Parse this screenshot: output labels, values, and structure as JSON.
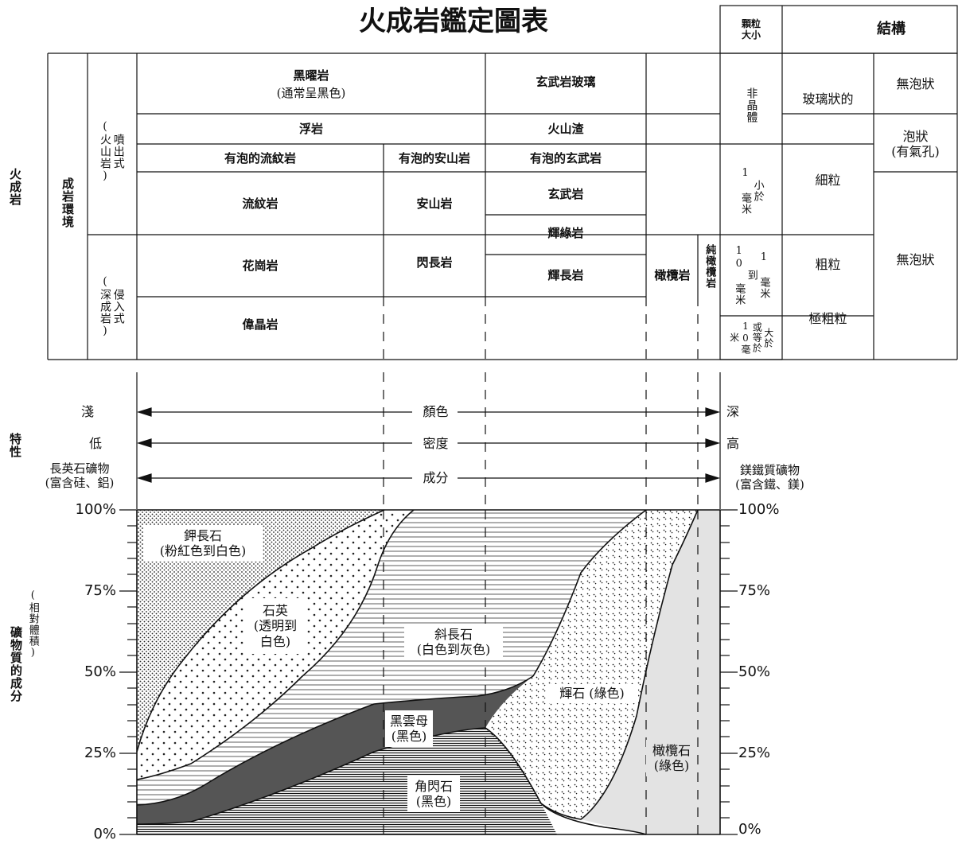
{
  "title": "火成岩鑑定圖表",
  "header": {
    "grain_size": "顆粒\n大小",
    "texture": "結構"
  },
  "side_labels": {
    "igneous": "火成岩",
    "environment": "成岩環境",
    "extrusive": "噴出式\n(火山岩)",
    "intrusive": "侵入式\n(深成岩)",
    "properties": "特性",
    "mineral_comp": "礦物質的成分",
    "mineral_comp_sub": "(相對體積)"
  },
  "rocks": {
    "obsidian": "黑曜岩",
    "obsidian_note": "(通常呈黑色)",
    "basalt_glass": "玄武岩玻璃",
    "pumice": "浮岩",
    "scoria": "火山渣",
    "vesicular_rhyolite": "有泡的流紋岩",
    "vesicular_andesite": "有泡的安山岩",
    "vesicular_basalt": "有泡的玄武岩",
    "rhyolite": "流紋岩",
    "andesite": "安山岩",
    "basalt": "玄武岩",
    "diabase": "輝綠岩",
    "granite": "花崗岩",
    "diorite": "閃長岩",
    "gabbro": "輝長岩",
    "peridotite": "橄欖岩",
    "dunite": "純橄欖岩",
    "pegmatite": "偉晶岩"
  },
  "grain": {
    "noncrystalline": "非晶體",
    "lt1mm": "小於\n1 毫米",
    "1to10mm": "1 毫米\n到\n10 毫米",
    "ge10mm": "大於\n或等於\n10毫米"
  },
  "texture": {
    "glassy": "玻璃狀的",
    "nonvesicular_top": "無泡狀",
    "vesicular": "泡狀\n(有氣孔)",
    "fine": "細粒",
    "coarse": "粗粒",
    "nonvesicular_bottom": "無泡狀",
    "very_coarse": "極粗粒"
  },
  "properties": {
    "color_left": "淺",
    "color_mid": "顏色",
    "color_right": "深",
    "density_left": "低",
    "density_mid": "密度",
    "density_right": "高",
    "comp_left": "長英石礦物\n(富含硅、鋁)",
    "comp_mid": "成分",
    "comp_right": "鎂鐵質礦物\n(富含鐵、鎂)"
  },
  "axis_ticks": [
    "100%",
    "75%",
    "50%",
    "25%",
    "0%"
  ],
  "minerals": {
    "kfeldspar": "鉀長石\n(粉紅色到白色)",
    "quartz": "石英\n(透明到\n白色)",
    "plagioclase": "斜長石\n(白色到灰色)",
    "biotite": "黑雲母\n(黑色)",
    "amphibole": "角閃石\n(黑色)",
    "pyroxene": "輝石 (綠色)",
    "olivine": "橄欖石\n(綠色)"
  },
  "colors": {
    "biotite": "#555555",
    "olivine": "#e3e3e3",
    "line": "#111111"
  }
}
